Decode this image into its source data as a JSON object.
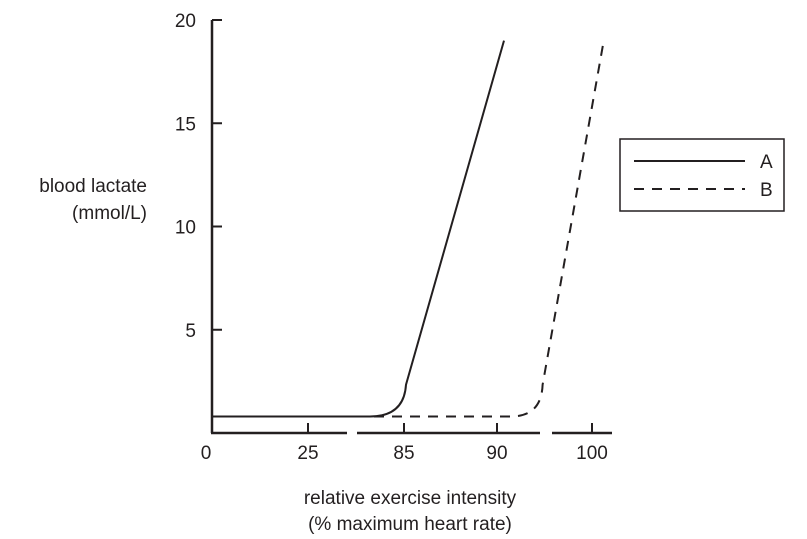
{
  "chart_data": {
    "type": "line",
    "title": "",
    "ylabel_lines": [
      "blood lactate",
      "(mmol/L)"
    ],
    "xlabel_lines": [
      "relative exercise intensity",
      "(% maximum heart rate)"
    ],
    "ylim": [
      0,
      20
    ],
    "y_ticks": [
      5,
      10,
      15,
      20
    ],
    "y_tick_labels": [
      "5",
      "10",
      "15",
      "20"
    ],
    "origin_label": "0",
    "x_axis_broken": true,
    "x_tick_labels": [
      "25",
      "85",
      "90",
      "100"
    ],
    "legend_position": "right",
    "series": [
      {
        "name": "A",
        "style": "solid",
        "points": [
          [
            0,
            0.8
          ],
          [
            25,
            0.8
          ],
          [
            82,
            0.8
          ],
          [
            85,
            2
          ],
          [
            91,
            19
          ]
        ]
      },
      {
        "name": "B",
        "style": "dashed",
        "points": [
          [
            0,
            0.8
          ],
          [
            25,
            0.8
          ],
          [
            82,
            0.8
          ],
          [
            92,
            0.8
          ],
          [
            95,
            2
          ],
          [
            101,
            18.8
          ]
        ]
      }
    ],
    "line_color": "#231f20"
  }
}
